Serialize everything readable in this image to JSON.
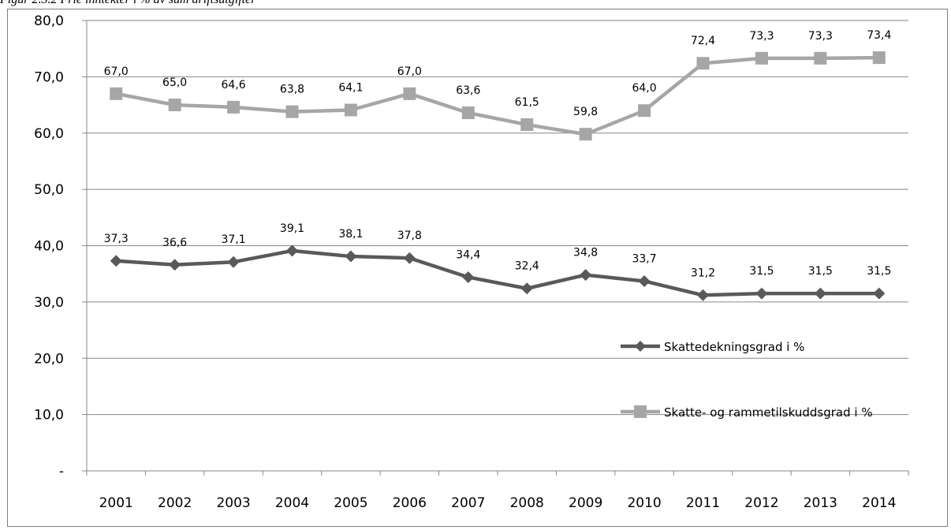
{
  "caption": "Figur 2.3.2 Frie inntekter i % av sum driftsutgifter",
  "chart_data": {
    "type": "line",
    "categories": [
      "2001",
      "2002",
      "2003",
      "2004",
      "2005",
      "2006",
      "2007",
      "2008",
      "2009",
      "2010",
      "2011",
      "2012",
      "2013",
      "2014"
    ],
    "ylim": [
      0,
      80
    ],
    "yticks": [
      0,
      10,
      20,
      30,
      40,
      50,
      60,
      70,
      80
    ],
    "ytick_labels": [
      "-",
      "10,0",
      "20,0",
      "30,0",
      "40,0",
      "50,0",
      "60,0",
      "70,0",
      "80,0"
    ],
    "grid": true,
    "legend_position": "right",
    "series": [
      {
        "name": "Skattedekningsgrad i %",
        "marker": "diamond",
        "color": "#595959",
        "values": [
          37.3,
          36.6,
          37.1,
          39.1,
          38.1,
          37.8,
          34.4,
          32.4,
          34.8,
          33.7,
          31.2,
          31.5,
          31.5,
          31.5
        ],
        "labels": [
          "37,3",
          "36,6",
          "37,1",
          "39,1",
          "38,1",
          "37,8",
          "34,4",
          "32,4",
          "34,8",
          "33,7",
          "31,2",
          "31,5",
          "31,5",
          "31,5"
        ]
      },
      {
        "name": "Skatte- og rammetilskuddsgrad i %",
        "marker": "square",
        "color": "#a6a6a6",
        "values": [
          67.0,
          65.0,
          64.6,
          63.8,
          64.1,
          67.0,
          63.6,
          61.5,
          59.8,
          64.0,
          72.4,
          73.3,
          73.3,
          73.4
        ],
        "labels": [
          "67,0",
          "65,0",
          "64,6",
          "63,8",
          "64,1",
          "67,0",
          "63,6",
          "61,5",
          "59,8",
          "64,0",
          "72,4",
          "73,3",
          "73,3",
          "73,4"
        ]
      }
    ]
  }
}
